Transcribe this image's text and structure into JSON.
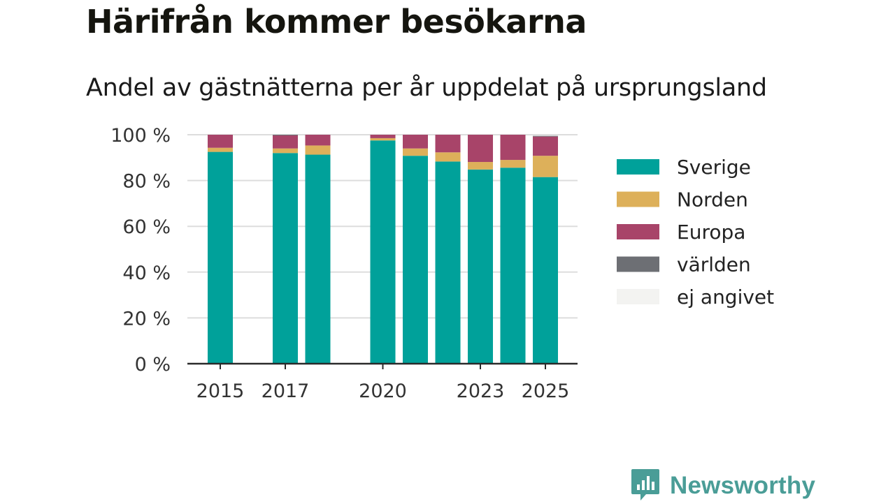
{
  "header": {
    "title": "Härifrån kommer besökarna",
    "subtitle": "Andel av gästnätterna per år uppdelat på ursprungsland"
  },
  "brand": {
    "name": "Newsworthy",
    "icon": "chart-bubble-icon",
    "color": "#4a9d97"
  },
  "chart_data": {
    "type": "bar",
    "stacked": true,
    "categories": [
      "2015",
      "2017",
      "2018",
      "2020",
      "2021",
      "2022",
      "2023",
      "2024",
      "2025"
    ],
    "x_ticks": [
      "2015",
      "2017",
      "2020",
      "2023",
      "2025"
    ],
    "y_ticks": [
      "0 %",
      "20 %",
      "40 %",
      "60 %",
      "80 %",
      "100 %"
    ],
    "ylim": [
      0,
      100
    ],
    "grid": true,
    "legend_position": "right",
    "series": [
      {
        "name": "Sverige",
        "color": "#00a19a",
        "values": [
          92.5,
          92,
          91.3,
          97.5,
          90.8,
          88.3,
          84.8,
          85.6,
          81.5
        ]
      },
      {
        "name": "Norden",
        "color": "#ddb05a",
        "values": [
          1.8,
          2,
          4,
          1,
          3.2,
          4,
          3.3,
          3.4,
          9.3
        ]
      },
      {
        "name": "Europa",
        "color": "#a84469",
        "values": [
          5.7,
          5.7,
          4.7,
          1.5,
          6,
          7.7,
          11.9,
          11,
          8.4
        ]
      },
      {
        "name": "världen",
        "color": "#6d6f74",
        "values": [
          0,
          0.3,
          0,
          0,
          0,
          0,
          0,
          0,
          0.3
        ]
      },
      {
        "name": "ej angivet",
        "color": "#f3f3f1",
        "values": [
          0,
          0,
          0,
          0,
          0,
          0,
          0,
          0,
          0
        ]
      }
    ]
  }
}
